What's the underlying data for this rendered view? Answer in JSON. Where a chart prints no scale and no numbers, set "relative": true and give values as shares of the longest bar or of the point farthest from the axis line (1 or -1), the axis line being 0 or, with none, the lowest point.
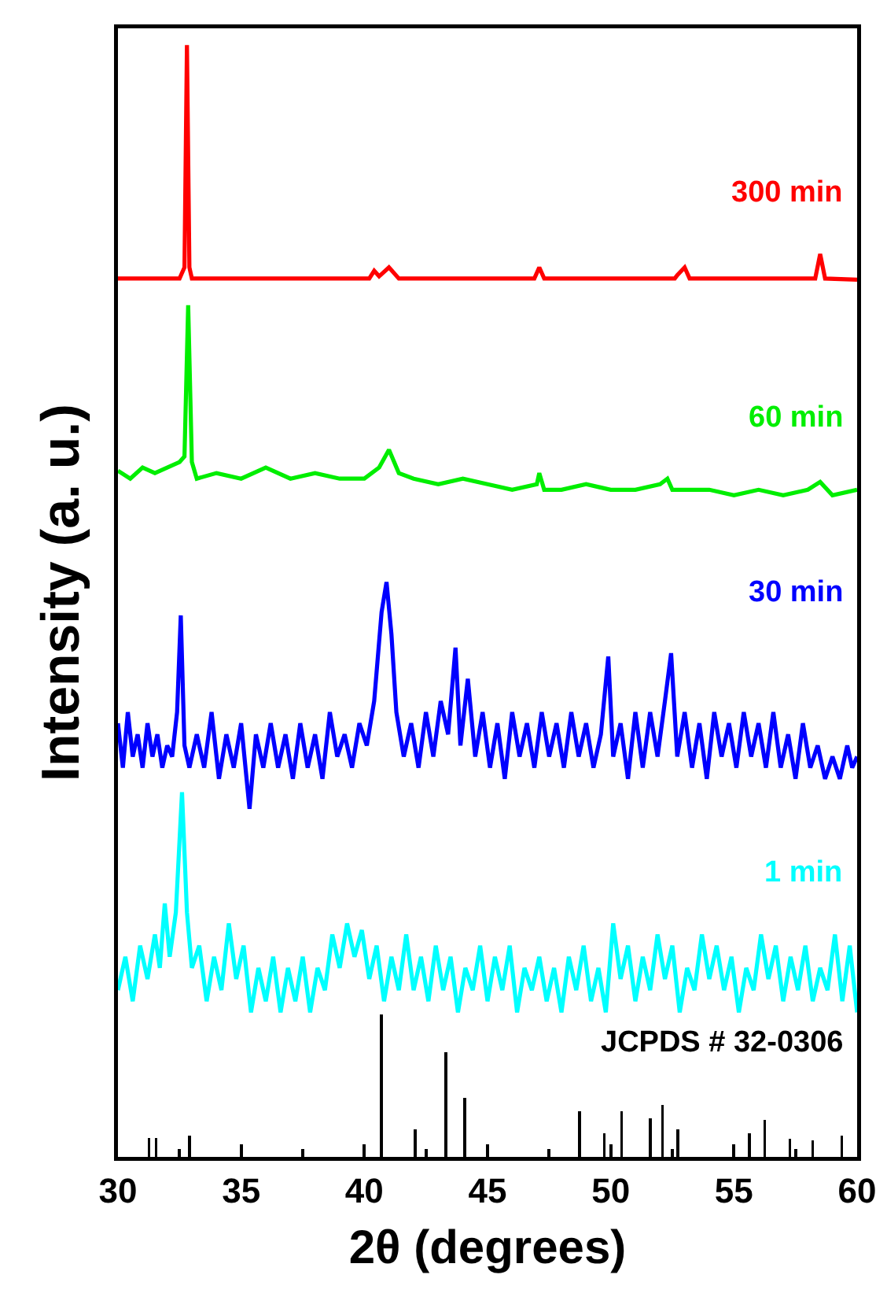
{
  "chart_data": {
    "type": "line",
    "relative": true,
    "xlabel": "2θ (degrees)",
    "ylabel": "Intensity (a. u.)",
    "xlim": [
      30,
      60
    ],
    "xticks": [
      30,
      35,
      40,
      45,
      50,
      55,
      60
    ],
    "grid": false,
    "legend": false,
    "marker": "none",
    "line_style": "solid",
    "tick_labels": "x",
    "series": [
      {
        "name": "300 min",
        "color": "#ff0000",
        "x": [
          30,
          32.5,
          32.7,
          32.8,
          32.9,
          33.0,
          40.2,
          40.4,
          40.6,
          41.0,
          41.4,
          46.9,
          47.1,
          47.3,
          52.6,
          52.7,
          53.0,
          53.2,
          58.3,
          58.5,
          58.7,
          60
        ],
        "values": [
          0.79,
          0.79,
          0.8,
          1.0,
          0.8,
          0.79,
          0.79,
          0.797,
          0.792,
          0.8,
          0.79,
          0.79,
          0.8,
          0.79,
          0.79,
          0.793,
          0.8,
          0.79,
          0.79,
          0.812,
          0.79,
          0.789
        ]
      },
      {
        "name": "60 min",
        "color": "#00ee00",
        "x": [
          30,
          30.5,
          31,
          31.5,
          32,
          32.5,
          32.7,
          32.85,
          33.0,
          33.2,
          34,
          35,
          36,
          37,
          38,
          39,
          40,
          40.6,
          41.0,
          41.4,
          42,
          43,
          44,
          45,
          46,
          47,
          47.1,
          47.3,
          48,
          49,
          50,
          51,
          52,
          52.3,
          52.5,
          54,
          55,
          56,
          57,
          58,
          58.5,
          59,
          60
        ],
        "values": [
          0.617,
          0.61,
          0.62,
          0.615,
          0.62,
          0.625,
          0.63,
          0.766,
          0.625,
          0.61,
          0.615,
          0.61,
          0.62,
          0.61,
          0.615,
          0.61,
          0.61,
          0.62,
          0.636,
          0.615,
          0.61,
          0.605,
          0.61,
          0.605,
          0.6,
          0.605,
          0.615,
          0.6,
          0.6,
          0.605,
          0.6,
          0.6,
          0.605,
          0.61,
          0.6,
          0.6,
          0.595,
          0.6,
          0.595,
          0.6,
          0.607,
          0.595,
          0.6
        ]
      },
      {
        "name": "30 min",
        "color": "#0000ff",
        "x": [
          30.0,
          30.2,
          30.4,
          30.6,
          30.8,
          31.0,
          31.2,
          31.4,
          31.6,
          31.8,
          32.0,
          32.2,
          32.4,
          32.55,
          32.7,
          32.9,
          33.2,
          33.5,
          33.8,
          34.1,
          34.4,
          34.7,
          35.0,
          35.34,
          35.6,
          35.9,
          36.2,
          36.5,
          36.8,
          37.1,
          37.4,
          37.7,
          38.0,
          38.3,
          38.6,
          38.9,
          39.2,
          39.5,
          39.8,
          40.1,
          40.4,
          40.7,
          40.9,
          41.1,
          41.3,
          41.6,
          41.9,
          42.2,
          42.5,
          42.8,
          43.1,
          43.4,
          43.7,
          43.9,
          44.2,
          44.5,
          44.8,
          45.1,
          45.4,
          45.7,
          46.0,
          46.3,
          46.6,
          46.9,
          47.2,
          47.5,
          47.8,
          48.1,
          48.4,
          48.7,
          49.0,
          49.3,
          49.6,
          49.9,
          50.1,
          50.4,
          50.7,
          51.0,
          51.3,
          51.6,
          51.9,
          52.2,
          52.45,
          52.7,
          53.0,
          53.3,
          53.6,
          53.9,
          54.2,
          54.5,
          54.8,
          55.1,
          55.4,
          55.7,
          56.0,
          56.3,
          56.6,
          56.9,
          57.2,
          57.5,
          57.8,
          58.1,
          58.4,
          58.7,
          59.0,
          59.3,
          59.6,
          59.8,
          60.0
        ],
        "values": [
          0.39,
          0.35,
          0.4,
          0.36,
          0.38,
          0.35,
          0.39,
          0.36,
          0.38,
          0.35,
          0.37,
          0.36,
          0.4,
          0.487,
          0.37,
          0.35,
          0.38,
          0.35,
          0.4,
          0.34,
          0.38,
          0.35,
          0.39,
          0.313,
          0.38,
          0.35,
          0.39,
          0.35,
          0.38,
          0.34,
          0.39,
          0.35,
          0.38,
          0.34,
          0.4,
          0.36,
          0.38,
          0.35,
          0.39,
          0.37,
          0.41,
          0.49,
          0.517,
          0.47,
          0.4,
          0.36,
          0.39,
          0.35,
          0.4,
          0.36,
          0.41,
          0.38,
          0.458,
          0.37,
          0.43,
          0.36,
          0.4,
          0.35,
          0.39,
          0.34,
          0.4,
          0.36,
          0.39,
          0.35,
          0.4,
          0.36,
          0.39,
          0.35,
          0.4,
          0.36,
          0.39,
          0.35,
          0.38,
          0.45,
          0.36,
          0.39,
          0.34,
          0.4,
          0.35,
          0.4,
          0.36,
          0.41,
          0.453,
          0.36,
          0.4,
          0.35,
          0.39,
          0.34,
          0.4,
          0.36,
          0.39,
          0.35,
          0.4,
          0.36,
          0.39,
          0.35,
          0.4,
          0.35,
          0.38,
          0.34,
          0.39,
          0.35,
          0.37,
          0.34,
          0.36,
          0.34,
          0.37,
          0.35,
          0.36
        ]
      },
      {
        "name": "1 min",
        "color": "#00ffff",
        "x": [
          30.0,
          30.3,
          30.6,
          30.9,
          31.2,
          31.5,
          31.7,
          31.9,
          32.1,
          32.35,
          32.6,
          32.8,
          33.0,
          33.3,
          33.6,
          33.9,
          34.2,
          34.5,
          34.8,
          35.1,
          35.4,
          35.7,
          36.0,
          36.3,
          36.6,
          36.9,
          37.2,
          37.5,
          37.8,
          38.1,
          38.4,
          38.7,
          39.0,
          39.3,
          39.6,
          39.9,
          40.2,
          40.5,
          40.8,
          41.1,
          41.4,
          41.7,
          42.0,
          42.3,
          42.6,
          42.9,
          43.2,
          43.5,
          43.8,
          44.1,
          44.4,
          44.7,
          45.0,
          45.3,
          45.6,
          45.9,
          46.2,
          46.5,
          46.8,
          47.1,
          47.4,
          47.7,
          48.0,
          48.3,
          48.6,
          48.9,
          49.2,
          49.5,
          49.8,
          50.1,
          50.4,
          50.7,
          51.0,
          51.3,
          51.6,
          51.9,
          52.2,
          52.5,
          52.8,
          53.1,
          53.4,
          53.7,
          54.0,
          54.3,
          54.6,
          54.9,
          55.2,
          55.5,
          55.8,
          56.1,
          56.4,
          56.7,
          57.0,
          57.3,
          57.6,
          57.9,
          58.2,
          58.5,
          58.8,
          59.1,
          59.4,
          59.7,
          60.0
        ],
        "values": [
          0.15,
          0.18,
          0.14,
          0.19,
          0.16,
          0.2,
          0.17,
          0.228,
          0.18,
          0.22,
          0.328,
          0.22,
          0.17,
          0.19,
          0.14,
          0.18,
          0.15,
          0.21,
          0.16,
          0.19,
          0.13,
          0.17,
          0.14,
          0.18,
          0.13,
          0.17,
          0.14,
          0.18,
          0.13,
          0.17,
          0.15,
          0.2,
          0.17,
          0.21,
          0.18,
          0.204,
          0.16,
          0.19,
          0.14,
          0.18,
          0.15,
          0.2,
          0.15,
          0.18,
          0.14,
          0.19,
          0.15,
          0.18,
          0.13,
          0.17,
          0.15,
          0.19,
          0.14,
          0.18,
          0.15,
          0.19,
          0.13,
          0.17,
          0.15,
          0.18,
          0.14,
          0.17,
          0.13,
          0.18,
          0.15,
          0.19,
          0.14,
          0.17,
          0.13,
          0.21,
          0.16,
          0.19,
          0.14,
          0.18,
          0.15,
          0.2,
          0.16,
          0.19,
          0.13,
          0.17,
          0.15,
          0.2,
          0.16,
          0.19,
          0.15,
          0.18,
          0.13,
          0.17,
          0.15,
          0.2,
          0.16,
          0.19,
          0.14,
          0.18,
          0.15,
          0.19,
          0.14,
          0.17,
          0.15,
          0.2,
          0.14,
          0.19,
          0.13
        ]
      },
      {
        "name": "JCPDS # 32-0306",
        "type": "bar",
        "color": "#000000",
        "x": [
          31.26,
          31.55,
          32.9,
          40.7,
          42.06,
          43.3,
          44.08,
          48.74,
          49.74,
          50.44,
          51.6,
          52.1,
          52.72,
          55.63,
          56.25,
          57.27,
          58.2,
          59.38
        ],
        "values": [
          0.017,
          0.017,
          0.019,
          0.128,
          0.025,
          0.094,
          0.053,
          0.041,
          0.021,
          0.041,
          0.035,
          0.047,
          0.025,
          0.021,
          0.033,
          0.016,
          0.015,
          0.019
        ]
      }
    ]
  }
}
